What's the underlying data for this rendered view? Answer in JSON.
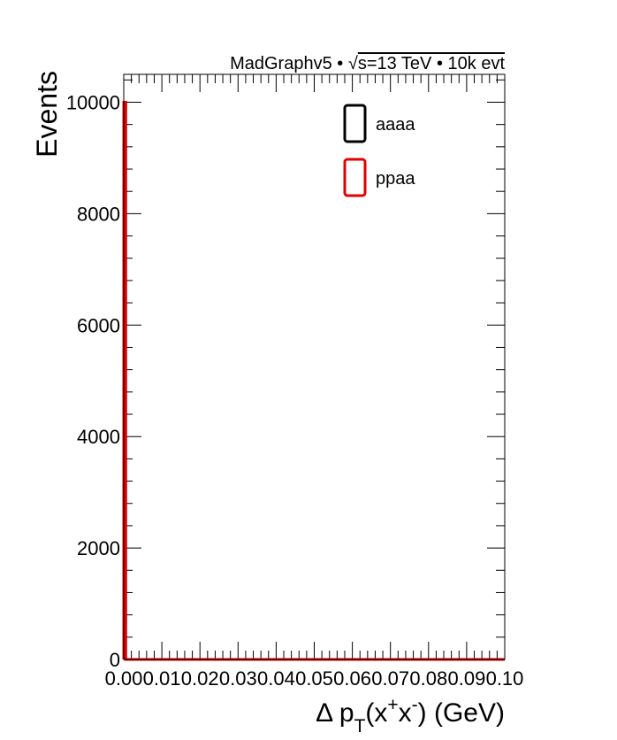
{
  "chart_data": {
    "type": "histogram",
    "title": "MadGraphv5 • √s=13 TeV • 10k evt",
    "header": {
      "prefix": "MadGraphv5 • ",
      "sqrt_symbol": "√",
      "s_eq": "s=13 TeV • 10k evt"
    },
    "xlabel": {
      "delta": "Δ p",
      "sub": "T",
      "open": "(x",
      "sup_plus": "+",
      "x": "x",
      "sup_minus": "-",
      "close": ") (GeV)"
    },
    "ylabel": "Events",
    "xlim": [
      0.0,
      0.1
    ],
    "ylim": [
      0,
      10500
    ],
    "xticks": [
      "0.00",
      "0.01",
      "0.02",
      "0.03",
      "0.04",
      "0.05",
      "0.06",
      "0.07",
      "0.08",
      "0.09",
      "0.10"
    ],
    "yticks": [
      "0",
      "2000",
      "4000",
      "6000",
      "8000",
      "10000"
    ],
    "legend_position": "top-right",
    "grid": false,
    "bin_width": 0.0005,
    "series": [
      {
        "name": "aaaa",
        "color": "#000000",
        "bins": [
          {
            "x_low": 0.0,
            "x_high": 0.0005,
            "count": 10000
          }
        ]
      },
      {
        "name": "ppaa",
        "color": "#e00000",
        "bins": [
          {
            "x_low": 0.0,
            "x_high": 0.0005,
            "count": 10000
          }
        ]
      }
    ]
  }
}
